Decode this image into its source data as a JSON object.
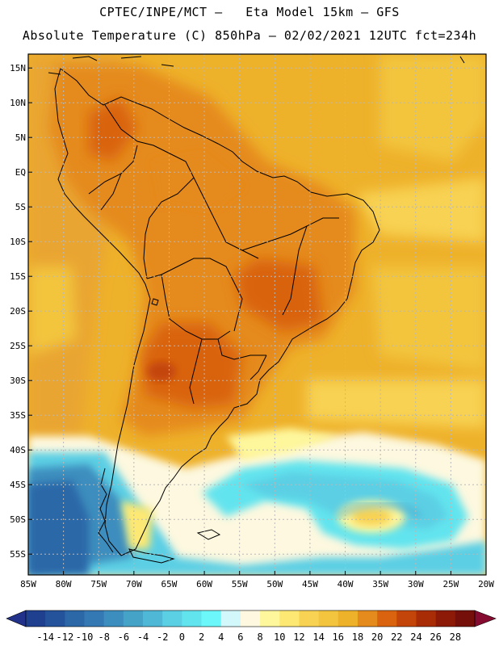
{
  "header": {
    "line1": "CPTEC/INPE/MCT –   Eta Model 15km – GFS",
    "line2": "Absolute Temperature (C) 850hPa – 02/02/2021 12UTC fct=234h"
  },
  "axes": {
    "lat_range": [
      -58,
      17
    ],
    "lon_range": [
      -85,
      -20
    ],
    "lat_ticks": [
      "15N",
      "10N",
      "5N",
      "EQ",
      "5S",
      "10S",
      "15S",
      "20S",
      "25S",
      "30S",
      "35S",
      "40S",
      "45S",
      "50S",
      "55S"
    ],
    "lat_values": [
      15,
      10,
      5,
      0,
      -5,
      -10,
      -15,
      -20,
      -25,
      -30,
      -35,
      -40,
      -45,
      -50,
      -55
    ],
    "lon_ticks": [
      "85W",
      "80W",
      "75W",
      "70W",
      "65W",
      "60W",
      "55W",
      "50W",
      "45W",
      "40W",
      "35W",
      "30W",
      "25W",
      "20W"
    ],
    "lon_values": [
      -85,
      -80,
      -75,
      -70,
      -65,
      -60,
      -55,
      -50,
      -45,
      -40,
      -35,
      -30,
      -25,
      -20
    ]
  },
  "colorbar": {
    "labels": [
      "-14",
      "-12",
      "-10",
      "-8",
      "-6",
      "-4",
      "-2",
      "0",
      "2",
      "4",
      "6",
      "8",
      "10",
      "12",
      "14",
      "16",
      "18",
      "20",
      "22",
      "24",
      "26",
      "28"
    ],
    "colors": [
      "#1f3f8f",
      "#24539b",
      "#2c68a8",
      "#3479b4",
      "#3c8ebe",
      "#45a3c8",
      "#4fb8d6",
      "#5bcfe4",
      "#62e4ee",
      "#6cf7fa",
      "#d2f8fc",
      "#fdf8df",
      "#fef79c",
      "#fde873",
      "#f8d253",
      "#f3c53e",
      "#eeb12a",
      "#e58a1c",
      "#d9630f",
      "#c34509",
      "#a82c06",
      "#8c1a07",
      "#741009"
    ],
    "under_color": "#22318a",
    "over_color": "#860b31"
  },
  "colors": {
    "warm": "#e9a530",
    "hot": "#d6731e",
    "ocean_warm": "#f2bd4a",
    "cold": "#5fd8ea"
  }
}
